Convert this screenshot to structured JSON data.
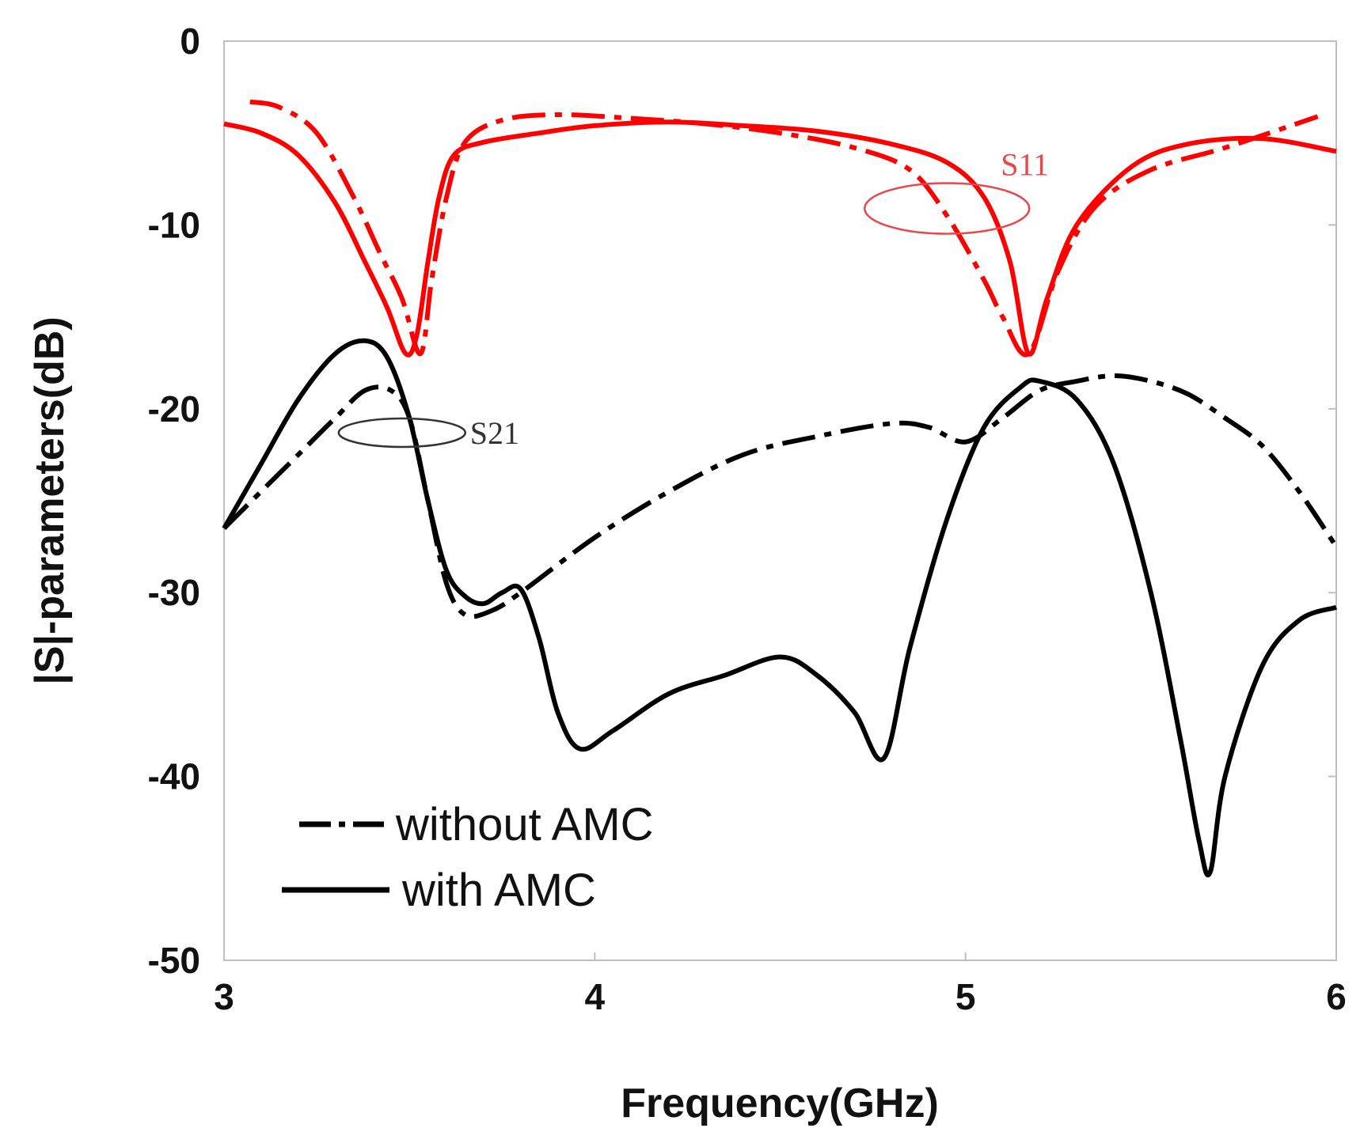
{
  "chart_data": {
    "type": "line",
    "title": "",
    "xlabel": "Frequency(GHz)",
    "ylabel": "|S|-parameters(dB)",
    "xlim": [
      3,
      6
    ],
    "ylim": [
      -50,
      0
    ],
    "xticks": [
      3,
      4,
      5,
      6
    ],
    "yticks": [
      0,
      -10,
      -20,
      -30,
      -40,
      -50
    ],
    "grid": false,
    "legend": {
      "placement": "bottom-left",
      "entries": [
        "without AMC",
        "with AMC"
      ]
    },
    "annotations": [
      {
        "text": "S11",
        "color": "#e8474c",
        "ellipse_center": [
          4.95,
          -9.1
        ]
      },
      {
        "text": "S21",
        "color": "#333333",
        "ellipse_center": [
          3.48,
          -21.3
        ]
      }
    ],
    "series": [
      {
        "name": "S11 with AMC",
        "parameter": "S11",
        "legend": "with AMC",
        "style": "solid",
        "color": "#ff0000",
        "x": [
          3.0,
          3.1,
          3.2,
          3.3,
          3.38,
          3.44,
          3.49,
          3.52,
          3.55,
          3.58,
          3.62,
          3.7,
          3.85,
          4.0,
          4.2,
          4.4,
          4.6,
          4.8,
          4.95,
          5.05,
          5.12,
          5.17,
          5.22,
          5.3,
          5.45,
          5.6,
          5.8,
          6.0
        ],
        "y": [
          -4.5,
          -5.0,
          -6.2,
          -8.8,
          -12.0,
          -14.5,
          -17.0,
          -16.0,
          -12.0,
          -8.5,
          -6.2,
          -5.5,
          -5.0,
          -4.6,
          -4.4,
          -4.6,
          -4.9,
          -5.6,
          -6.6,
          -8.5,
          -12.0,
          -17.0,
          -14.0,
          -10.0,
          -6.8,
          -5.6,
          -5.3,
          -6.0
        ]
      },
      {
        "name": "S11 without AMC",
        "parameter": "S11",
        "legend": "without AMC",
        "style": "dashdot",
        "color": "#ff0000",
        "x": [
          3.07,
          3.15,
          3.25,
          3.35,
          3.42,
          3.48,
          3.53,
          3.56,
          3.6,
          3.65,
          3.75,
          3.9,
          4.1,
          4.3,
          4.5,
          4.7,
          4.85,
          4.95,
          5.05,
          5.1,
          5.17,
          5.25,
          5.35,
          5.5,
          5.7,
          5.95
        ],
        "y": [
          -3.3,
          -3.6,
          -5.0,
          -8.5,
          -11.5,
          -14.0,
          -17.0,
          -13.0,
          -8.5,
          -5.5,
          -4.3,
          -4.0,
          -4.2,
          -4.5,
          -5.0,
          -5.8,
          -7.0,
          -9.5,
          -13.0,
          -15.0,
          -17.0,
          -12.5,
          -9.0,
          -7.0,
          -5.8,
          -4.1
        ]
      },
      {
        "name": "S21 with AMC",
        "parameter": "S21",
        "legend": "with AMC",
        "style": "solid",
        "color": "#000000",
        "x": [
          3.0,
          3.1,
          3.2,
          3.3,
          3.38,
          3.44,
          3.5,
          3.55,
          3.6,
          3.65,
          3.7,
          3.75,
          3.8,
          3.85,
          3.9,
          3.96,
          4.05,
          4.2,
          4.35,
          4.5,
          4.6,
          4.7,
          4.78,
          4.85,
          4.95,
          5.05,
          5.15,
          5.2,
          5.3,
          5.4,
          5.5,
          5.58,
          5.63,
          5.66,
          5.7,
          5.8,
          5.9,
          6.0
        ],
        "y": [
          -26.5,
          -23.0,
          -19.5,
          -17.0,
          -16.3,
          -17.2,
          -20.5,
          -25.0,
          -28.8,
          -30.2,
          -30.6,
          -30.0,
          -29.8,
          -32.5,
          -36.5,
          -38.5,
          -37.5,
          -35.5,
          -34.5,
          -33.5,
          -34.5,
          -36.5,
          -39.0,
          -33.0,
          -26.0,
          -21.0,
          -18.8,
          -18.5,
          -19.5,
          -23.0,
          -30.0,
          -38.0,
          -43.5,
          -45.2,
          -40.0,
          -34.0,
          -31.5,
          -30.8
        ]
      },
      {
        "name": "S21 without AMC",
        "parameter": "S21",
        "legend": "without AMC",
        "style": "dashdot",
        "color": "#000000",
        "x": [
          3.0,
          3.1,
          3.2,
          3.3,
          3.38,
          3.45,
          3.5,
          3.55,
          3.6,
          3.65,
          3.72,
          3.8,
          4.0,
          4.2,
          4.4,
          4.6,
          4.8,
          4.9,
          5.0,
          5.1,
          5.2,
          5.3,
          5.4,
          5.5,
          5.6,
          5.7,
          5.8,
          5.9,
          6.0
        ],
        "y": [
          -26.5,
          -24.5,
          -22.5,
          -20.5,
          -19.0,
          -19.0,
          -20.5,
          -25.0,
          -29.5,
          -31.2,
          -31.0,
          -30.0,
          -27.0,
          -24.5,
          -22.5,
          -21.5,
          -20.8,
          -21.0,
          -21.8,
          -20.5,
          -19.0,
          -18.5,
          -18.2,
          -18.5,
          -19.2,
          -20.5,
          -22.0,
          -24.5,
          -27.5
        ]
      }
    ]
  }
}
